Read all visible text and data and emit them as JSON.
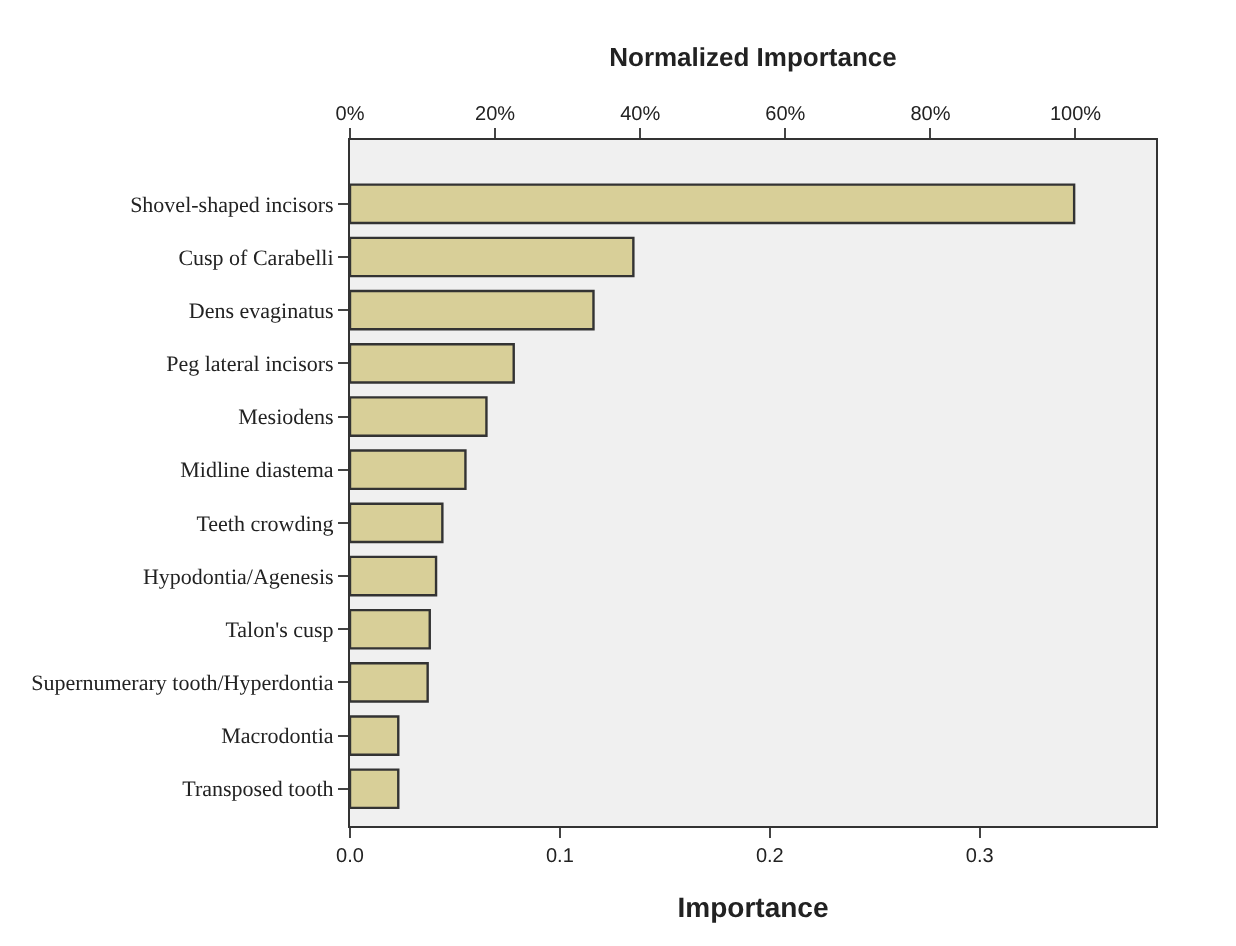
{
  "chart_data": {
    "type": "bar",
    "orientation": "horizontal",
    "xlabel": "Importance",
    "x2label": "Normalized Importance",
    "categories": [
      "Shovel-shaped incisors",
      "Cusp of Carabelli",
      "Dens evaginatus",
      "Peg lateral incisors",
      "Mesiodens",
      "Midline diastema",
      "Teeth crowding",
      "Hypodontia/Agenesis",
      "Talon's cusp",
      "Supernumerary tooth/Hyperdontia",
      "Macrodontia",
      "Transposed tooth"
    ],
    "values": [
      0.345,
      0.135,
      0.116,
      0.078,
      0.065,
      0.055,
      0.044,
      0.041,
      0.038,
      0.037,
      0.023,
      0.023
    ],
    "color": "#d8cf98",
    "xlim": [
      0,
      0.384
    ],
    "xticks": [
      {
        "value": 0,
        "label": "0.0"
      },
      0.1,
      0.2,
      0.3
    ],
    "x2lim": [
      0,
      111.1
    ],
    "x2ticks": [
      {
        "value": 0,
        "label": "0%"
      },
      {
        "value": 20,
        "label": "20%"
      },
      {
        "value": 40,
        "label": "40%"
      },
      {
        "value": 60,
        "label": "60%"
      },
      {
        "value": 80,
        "label": "80%"
      },
      {
        "value": 100,
        "label": "100%"
      }
    ],
    "grid": false,
    "legend": false
  }
}
